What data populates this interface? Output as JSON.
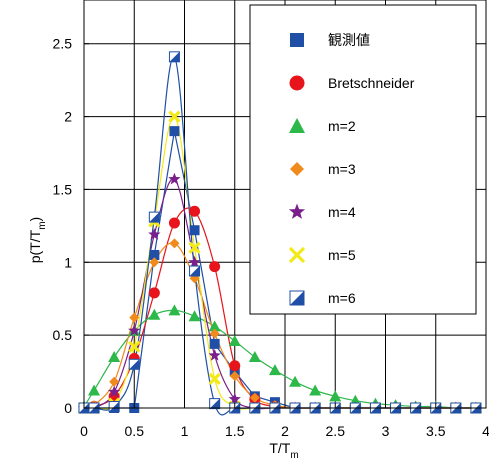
{
  "chart_data": {
    "type": "line",
    "xlabel": "T/T",
    "xlabel_sub": "m",
    "ylabel": "p(T/T",
    "ylabel_sub": "m",
    "ylabel_close": ")",
    "xlim": [
      0,
      4
    ],
    "ylim": [
      0,
      2.8
    ],
    "xticks": [
      0,
      0.5,
      1,
      1.5,
      2,
      2.5,
      3,
      3.5,
      4
    ],
    "xtick_labels": [
      "0",
      "0.5",
      "1",
      "1.5",
      "2",
      "2.5",
      "3",
      "3.5",
      "4"
    ],
    "yticks": [
      0,
      0.5,
      1,
      1.5,
      2,
      2.5
    ],
    "ytick_labels": [
      "0",
      "0.5",
      "1",
      "1.5",
      "2",
      "2.5"
    ],
    "grid": true,
    "legend_position": "top-right",
    "x": [
      0,
      0.1,
      0.3,
      0.5,
      0.7,
      0.9,
      1.1,
      1.3,
      1.5,
      1.7,
      1.9,
      2.1,
      2.3,
      2.5,
      2.7,
      2.9,
      3.1,
      3.3,
      3.5,
      3.7,
      3.9
    ],
    "series": [
      {
        "name": "観測値",
        "marker": "square",
        "color": "#1f4fa6",
        "curve": false,
        "values": [
          0,
          0,
          0,
          0,
          1.05,
          1.9,
          1.22,
          0.44,
          0.25,
          0.08,
          0.04,
          0,
          0,
          0,
          0,
          0,
          0,
          0,
          0,
          0,
          0
        ]
      },
      {
        "name": "Bretschneider",
        "marker": "circle",
        "color": "#e8141b",
        "curve": true,
        "values": [
          0,
          0.01,
          0.08,
          0.34,
          0.79,
          1.27,
          1.35,
          0.97,
          0.29,
          0.06,
          0.01,
          0,
          0,
          0,
          0,
          0,
          0,
          0,
          0,
          0,
          0
        ]
      },
      {
        "name": "m=2",
        "marker": "triangle",
        "color": "#2db84a",
        "curve": true,
        "values": [
          0.01,
          0.12,
          0.35,
          0.53,
          0.64,
          0.67,
          0.63,
          0.56,
          0.46,
          0.35,
          0.26,
          0.18,
          0.12,
          0.08,
          0.05,
          0.03,
          0.02,
          0.01,
          0.01,
          0,
          0
        ]
      },
      {
        "name": "m=3",
        "marker": "diamond",
        "color": "#f08a1c",
        "curve": true,
        "values": [
          0,
          0.02,
          0.18,
          0.62,
          1.0,
          1.13,
          0.89,
          0.51,
          0.22,
          0.07,
          0.02,
          0,
          0,
          0,
          0,
          0,
          0,
          0,
          0,
          0,
          0
        ]
      },
      {
        "name": "m=4",
        "marker": "star",
        "color": "#7a1f8c",
        "curve": true,
        "values": [
          0,
          0,
          0.11,
          0.53,
          1.19,
          1.57,
          1.0,
          0.36,
          0.06,
          0,
          0,
          0,
          0,
          0,
          0,
          0,
          0,
          0,
          0,
          0,
          0
        ]
      },
      {
        "name": "m=5",
        "marker": "x",
        "color": "#f2ea18",
        "curve": true,
        "values": [
          0,
          0,
          0.03,
          0.42,
          1.28,
          2.0,
          1.1,
          0.2,
          0.01,
          0,
          0,
          0,
          0,
          0,
          0,
          0,
          0,
          0,
          0,
          0,
          0
        ]
      },
      {
        "name": "m=6",
        "marker": "halfsquare",
        "color": "#1f4fa6",
        "curve": true,
        "values": [
          0,
          0,
          0.01,
          0.3,
          1.31,
          2.41,
          0.94,
          0.03,
          0,
          0,
          0,
          0,
          0,
          0,
          0,
          0,
          0,
          0,
          0,
          0,
          0
        ]
      }
    ]
  }
}
